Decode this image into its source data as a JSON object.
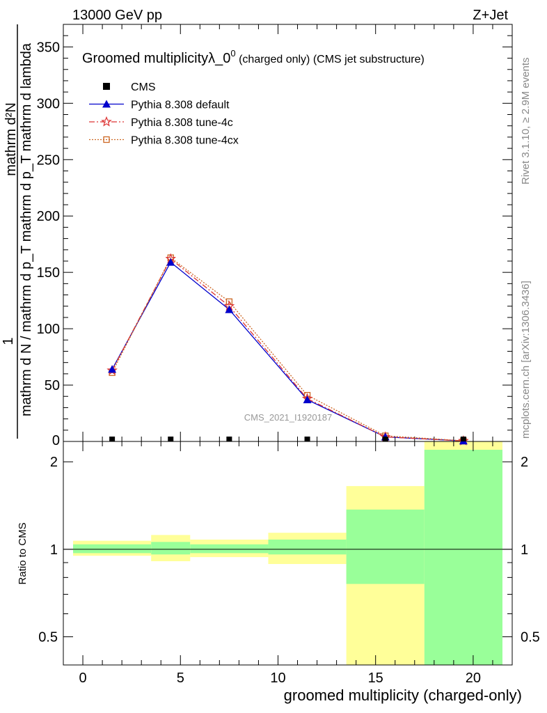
{
  "header": {
    "left": "13000 GeV pp",
    "right": "Z+Jet"
  },
  "side_labels": {
    "rivet": "Rivet 3.1.10, ≥ 2.9M events",
    "mcplots": "mcplots.cern.ch [arXiv:1306.3436]"
  },
  "chart_data": {
    "type": "line",
    "title_main": "Groomed multiplicityλ_0",
    "title_sup": "0",
    "title_small": " (charged only) (CMS jet substructure)",
    "watermark": "CMS_2021_I1920187",
    "xlabel": "groomed multiplicity (charged-only)",
    "ylabel_top_num": "1",
    "ylabel_top_den": "mathrm d N / mathrm d p_T mathrm d p_T mathrm d lambda",
    "ylabel_top_num2": "mathrm d²N",
    "ylabel_ratio": "Ratio to CMS",
    "xlim": [
      -1,
      22
    ],
    "ylim_main": [
      0,
      370
    ],
    "ylim_ratio": [
      0.4,
      2.35
    ],
    "x_ticks": [
      "0",
      "5",
      "10",
      "15",
      "20"
    ],
    "x_tick_values": [
      0,
      5,
      10,
      15,
      20
    ],
    "y_ticks_main": [
      "50",
      "100",
      "150",
      "200",
      "250",
      "300",
      "350"
    ],
    "y_tick_values_main": [
      50,
      100,
      150,
      200,
      250,
      300,
      350
    ],
    "y_ticks_main_zero": "0",
    "y_ticks_ratio": [
      "0.5",
      "1",
      "2"
    ],
    "y_tick_values_ratio": [
      0.5,
      1,
      2
    ],
    "legend": [
      {
        "name": "CMS",
        "color": "#000000",
        "marker": "square-filled"
      },
      {
        "name": "Pythia 8.308 default",
        "color": "#0000cc",
        "marker": "triangle"
      },
      {
        "name": "Pythia 8.308 tune-4c",
        "color": "#dd3333",
        "marker": "star"
      },
      {
        "name": "Pythia 8.308 tune-4cx",
        "color": "#cc6622",
        "marker": "square-open"
      }
    ],
    "cms": {
      "x": [
        1.5,
        4.5,
        7.5,
        11.5,
        15.5,
        19.5
      ],
      "y": [
        0,
        0,
        0,
        0,
        0,
        0
      ]
    },
    "series": [
      {
        "name": "Pythia 8.308 default",
        "color": "#0000cc",
        "marker": "triangle",
        "dash": "",
        "x": [
          1.5,
          4.5,
          7.5,
          11.5,
          15.5,
          19.5
        ],
        "y": [
          64,
          159,
          117,
          37,
          4,
          0.5
        ]
      },
      {
        "name": "Pythia 8.308 tune-4c",
        "color": "#dd3333",
        "marker": "star",
        "dash": "8,3,2,3",
        "x": [
          1.5,
          4.5,
          7.5,
          11.5,
          15.5,
          19.5
        ],
        "y": [
          63,
          162,
          120,
          38,
          4,
          0.5
        ]
      },
      {
        "name": "Pythia 8.308 tune-4cx",
        "color": "#cc6622",
        "marker": "square-open",
        "dash": "2,2",
        "x": [
          1.5,
          4.5,
          7.5,
          11.5,
          15.5,
          19.5
        ],
        "y": [
          61,
          163,
          124,
          41,
          5,
          0.6
        ]
      }
    ],
    "ratio_bands": [
      {
        "x0": -0.5,
        "x1": 3.5,
        "yellow": [
          0.95,
          1.07
        ],
        "green": [
          0.97,
          1.04
        ]
      },
      {
        "x0": 3.5,
        "x1": 5.5,
        "yellow": [
          0.91,
          1.12
        ],
        "green": [
          0.96,
          1.06
        ]
      },
      {
        "x0": 5.5,
        "x1": 9.5,
        "yellow": [
          0.94,
          1.08
        ],
        "green": [
          0.97,
          1.04
        ]
      },
      {
        "x0": 9.5,
        "x1": 13.5,
        "yellow": [
          0.89,
          1.14
        ],
        "green": [
          0.96,
          1.08
        ]
      },
      {
        "x0": 13.5,
        "x1": 17.5,
        "yellow": [
          0.38,
          1.65
        ],
        "green": [
          0.76,
          1.37
        ]
      },
      {
        "x0": 17.5,
        "x1": 21.5,
        "yellow": [
          0.3,
          2.4
        ],
        "green": [
          0.3,
          2.2
        ]
      }
    ],
    "colors": {
      "yellow": "#ffff99",
      "green": "#99ff99"
    }
  }
}
